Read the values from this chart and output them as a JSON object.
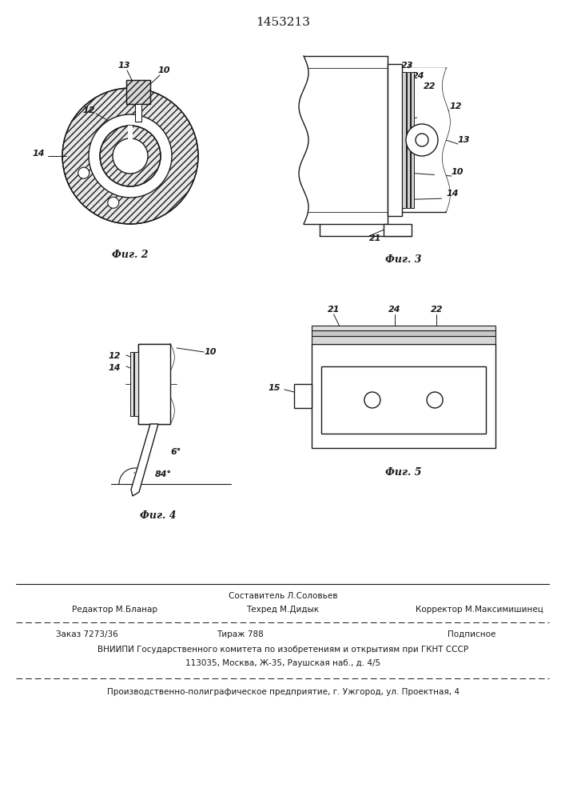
{
  "patent_number": "1453213",
  "background_color": "#ffffff",
  "line_color": "#1a1a1a",
  "footer": {
    "editor": "Редактор М.Бланар",
    "composer_label": "Составитель Л.Соловьев",
    "techred_label": "Техред М.Дидык",
    "corrector_label": "Корректор М.Максимишинец",
    "order": "Заказ 7273/36",
    "tirazh": "Тираж 788",
    "podpisnoe": "Подписное",
    "vniiipi_line1": "ВНИИПИ Государственного комитета по изобретениям и открытиям при ГКНТ СССР",
    "vniiipi_line2": "113035, Москва, Ж-35, Раушская наб., д. 4/5",
    "proizv": "Производственно-полиграфическое предприятие, г. Ужгород, ул. Проектная, 4"
  }
}
